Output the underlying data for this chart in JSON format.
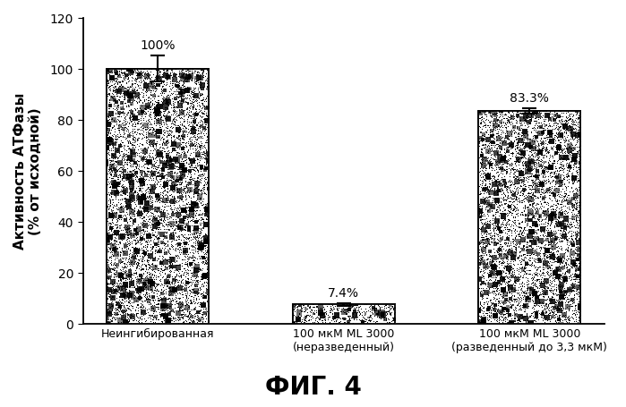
{
  "categories": [
    "Неингибированная",
    "100 мкМ ML 3000\n(неразведенный)",
    "100 мкМ ML 3000\n(разведенный до 3,3 мкМ)"
  ],
  "values": [
    100.0,
    7.4,
    83.3
  ],
  "errors": [
    5.0,
    0.4,
    1.0
  ],
  "labels": [
    "100%",
    "7.4%",
    "83.3%"
  ],
  "bar_edgecolor": "#000000",
  "ylabel": "Активность АТФазы\n(% от исходной)",
  "title": "ФИГ. 4",
  "ylim": [
    0,
    120
  ],
  "yticks": [
    0,
    20,
    40,
    60,
    80,
    100,
    120
  ],
  "background_color": "#ffffff",
  "bar_width": 0.55,
  "x_positions": [
    0,
    1,
    2
  ],
  "noise_density": 0.18,
  "label_fontsize": 10,
  "ylabel_fontsize": 11,
  "title_fontsize": 20
}
